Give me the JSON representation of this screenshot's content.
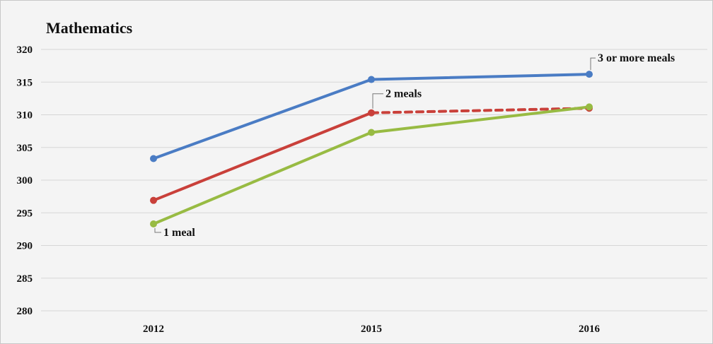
{
  "chart_data": {
    "type": "line",
    "title": "Mathematics",
    "xlabel": "",
    "ylabel": "",
    "categories": [
      "2012",
      "2015",
      "2016"
    ],
    "ylim": [
      280,
      320
    ],
    "yticks": [
      280,
      285,
      290,
      295,
      300,
      305,
      310,
      315,
      320
    ],
    "grid": "horizontal",
    "series": [
      {
        "name": "3 or more meals",
        "values": [
          303.3,
          315.4,
          316.2
        ],
        "color": "#4a7cc4",
        "segment_styles": [
          "solid",
          "solid"
        ]
      },
      {
        "name": "2 meals",
        "values": [
          296.9,
          310.3,
          311.0
        ],
        "color": "#c9403a",
        "segment_styles": [
          "solid",
          "dashed"
        ]
      },
      {
        "name": "1 meal",
        "values": [
          293.3,
          307.3,
          311.2
        ],
        "color": "#98bb43",
        "segment_styles": [
          "solid",
          "solid"
        ]
      }
    ],
    "annotations": [
      {
        "series": "3 or more meals",
        "text": "3 or more meals",
        "at": "2016"
      },
      {
        "series": "2 meals",
        "text": "2 meals",
        "at": "2015"
      },
      {
        "series": "1 meal",
        "text": "1 meal",
        "at": "2012"
      }
    ]
  }
}
